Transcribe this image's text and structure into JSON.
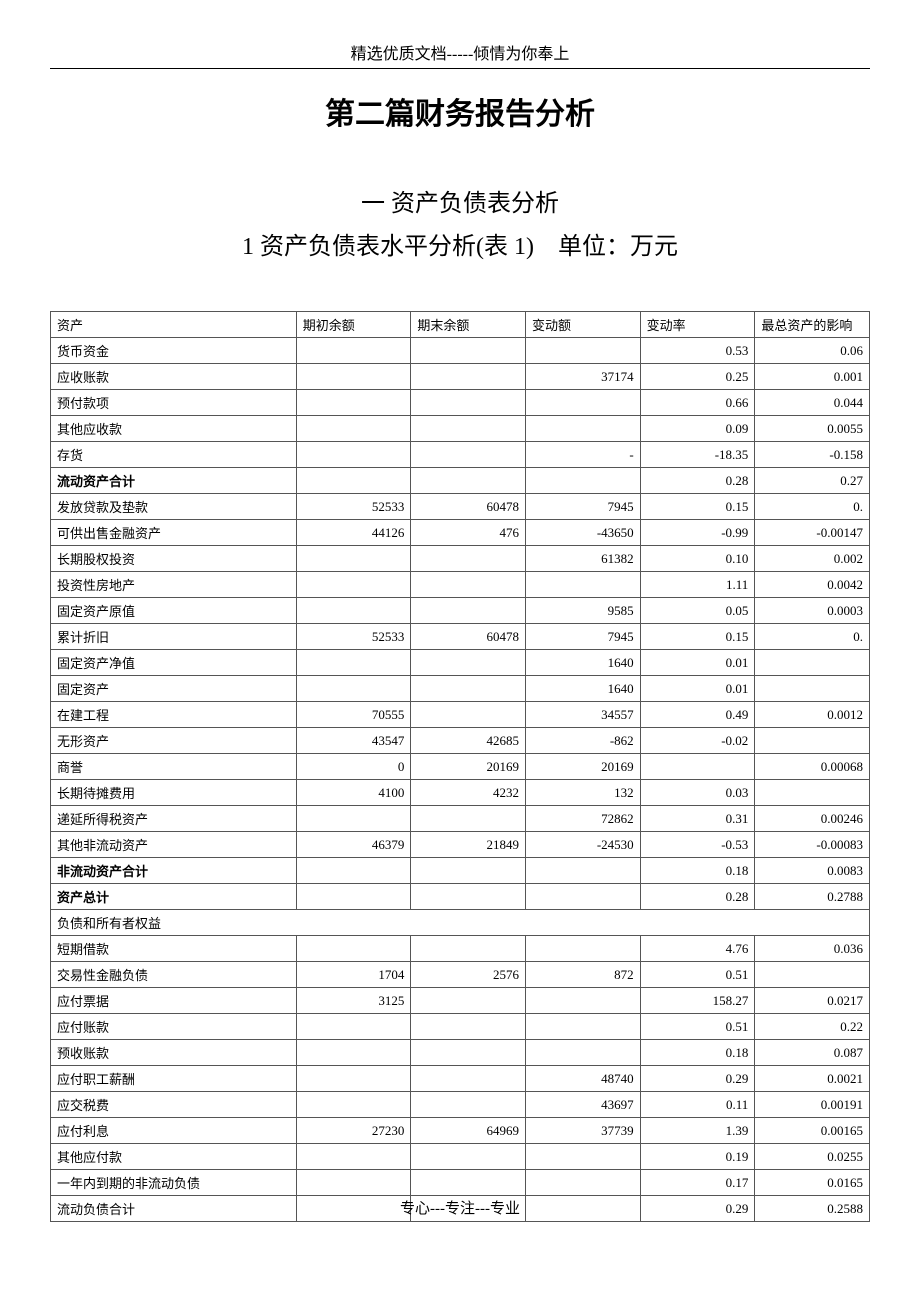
{
  "header_text": "精选优质文档-----倾情为你奉上",
  "main_title": "第二篇财务报告分析",
  "section_title": "一 资产负债表分析",
  "subsection_title": "1 资产负债表水平分析(表 1)　单位：万元",
  "footer_text": "专心---专注---专业",
  "table": {
    "columns": [
      "资产",
      "期初余额",
      "期末余额",
      "变动额",
      "变动率",
      "最总资产的影响"
    ],
    "col_widths": [
      "30%",
      "14%",
      "14%",
      "14%",
      "14%",
      "14%"
    ],
    "rows": [
      {
        "label": "货币资金",
        "c1": "",
        "c2": "",
        "c3": "",
        "c4": "0.53",
        "c5": "0.06"
      },
      {
        "label": "应收账款",
        "c1": "",
        "c2": "",
        "c3": "37174",
        "c4": "0.25",
        "c5": "0.001"
      },
      {
        "label": "预付款项",
        "c1": "",
        "c2": "",
        "c3": "",
        "c4": "0.66",
        "c5": "0.044"
      },
      {
        "label": "其他应收款",
        "c1": "",
        "c2": "",
        "c3": "",
        "c4": "0.09",
        "c5": "0.0055"
      },
      {
        "label": "存货",
        "c1": "",
        "c2": "",
        "c3": "-",
        "c4": "-18.35",
        "c5": "-0.158"
      },
      {
        "label": "流动资产合计",
        "c1": "",
        "c2": "",
        "c3": "",
        "c4": "0.28",
        "c5": "0.27",
        "bold": true
      },
      {
        "label": "发放贷款及垫款",
        "c1": "52533",
        "c2": "60478",
        "c3": "7945",
        "c4": "0.15",
        "c5": "0."
      },
      {
        "label": "可供出售金融资产",
        "c1": "44126",
        "c2": "476",
        "c3": "-43650",
        "c4": "-0.99",
        "c5": "-0.00147"
      },
      {
        "label": "长期股权投资",
        "c1": "",
        "c2": "",
        "c3": "61382",
        "c4": "0.10",
        "c5": "0.002"
      },
      {
        "label": "投资性房地产",
        "c1": "",
        "c2": "",
        "c3": "",
        "c4": "1.11",
        "c5": "0.0042"
      },
      {
        "label": "固定资产原值",
        "c1": "",
        "c2": "",
        "c3": "9585",
        "c4": "0.05",
        "c5": "0.0003"
      },
      {
        "label": "累计折旧",
        "c1": "52533",
        "c2": "60478",
        "c3": "7945",
        "c4": "0.15",
        "c5": "0."
      },
      {
        "label": "固定资产净值",
        "c1": "",
        "c2": "",
        "c3": "1640",
        "c4": "0.01",
        "c5": ""
      },
      {
        "label": "固定资产",
        "c1": "",
        "c2": "",
        "c3": "1640",
        "c4": "0.01",
        "c5": ""
      },
      {
        "label": "在建工程",
        "c1": "70555",
        "c2": "",
        "c3": "34557",
        "c4": "0.49",
        "c5": "0.0012"
      },
      {
        "label": "无形资产",
        "c1": "43547",
        "c2": "42685",
        "c3": "-862",
        "c4": "-0.02",
        "c5": ""
      },
      {
        "label": "商誉",
        "c1": "0",
        "c2": "20169",
        "c3": "20169",
        "c4": "",
        "c5": "0.00068"
      },
      {
        "label": "长期待摊费用",
        "c1": "4100",
        "c2": "4232",
        "c3": "132",
        "c4": "0.03",
        "c5": ""
      },
      {
        "label": "递延所得税资产",
        "c1": "",
        "c2": "",
        "c3": "72862",
        "c4": "0.31",
        "c5": "0.00246"
      },
      {
        "label": "其他非流动资产",
        "c1": "46379",
        "c2": "21849",
        "c3": "-24530",
        "c4": "-0.53",
        "c5": "-0.00083"
      },
      {
        "label": "非流动资产合计",
        "c1": "",
        "c2": "",
        "c3": "",
        "c4": "0.18",
        "c5": "0.0083",
        "bold": true
      },
      {
        "label": "资产总计",
        "c1": "",
        "c2": "",
        "c3": "",
        "c4": "0.28",
        "c5": "0.2788",
        "bold": true
      },
      {
        "label": "负债和所有者权益",
        "span": true
      },
      {
        "label": "短期借款",
        "c1": "",
        "c2": "",
        "c3": "",
        "c4": "4.76",
        "c5": "0.036"
      },
      {
        "label": "交易性金融负债",
        "c1": "1704",
        "c2": "2576",
        "c3": "872",
        "c4": "0.51",
        "c5": ""
      },
      {
        "label": "应付票据",
        "c1": "3125",
        "c2": "",
        "c3": "",
        "c4": "158.27",
        "c5": "0.0217"
      },
      {
        "label": "应付账款",
        "c1": "",
        "c2": "",
        "c3": "",
        "c4": "0.51",
        "c5": "0.22"
      },
      {
        "label": "预收账款",
        "c1": "",
        "c2": "",
        "c3": "",
        "c4": "0.18",
        "c5": "0.087"
      },
      {
        "label": "应付职工薪酬",
        "c1": "",
        "c2": "",
        "c3": "48740",
        "c4": "0.29",
        "c5": "0.0021"
      },
      {
        "label": "应交税费",
        "c1": "",
        "c2": "",
        "c3": "43697",
        "c4": "0.11",
        "c5": "0.00191"
      },
      {
        "label": "应付利息",
        "c1": "27230",
        "c2": "64969",
        "c3": "37739",
        "c4": "1.39",
        "c5": "0.00165"
      },
      {
        "label": "其他应付款",
        "c1": "",
        "c2": "",
        "c3": "",
        "c4": "0.19",
        "c5": "0.0255"
      },
      {
        "label": "一年内到期的非流动负债",
        "c1": "",
        "c2": "",
        "c3": "",
        "c4": "0.17",
        "c5": "0.0165"
      },
      {
        "label": "流动负债合计",
        "c1": "",
        "c2": "",
        "c3": "",
        "c4": "0.29",
        "c5": "0.2588"
      }
    ]
  }
}
